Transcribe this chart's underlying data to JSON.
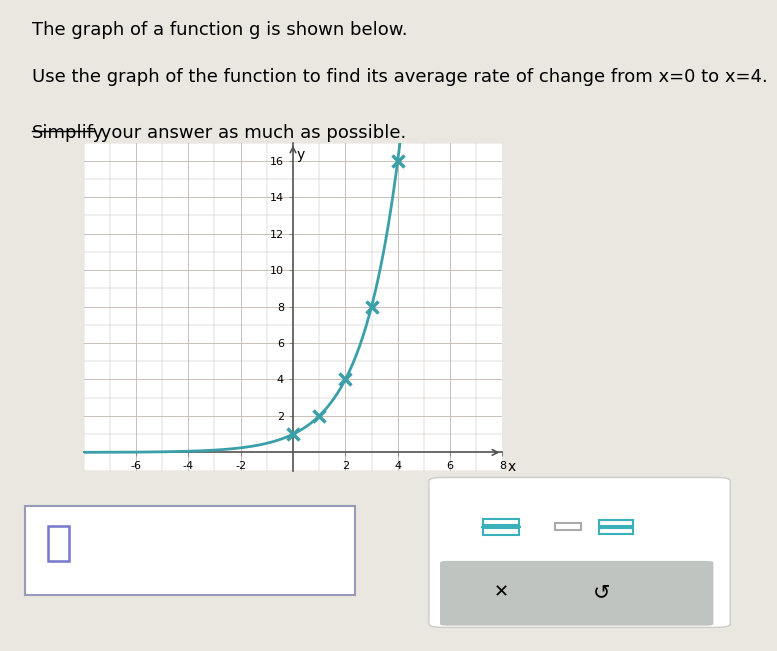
{
  "title_line1": "The graph of a function g is shown below.",
  "title_line2": "Use the graph of the function to find its average rate of change from x=0 to x=4.",
  "title_line3_part1": "Simplify",
  "title_line3_part2": " your answer as much as possible.",
  "background_color": "#eae6e0",
  "plot_bg_color": "#ffffff",
  "curve_color": "#3a9fa8",
  "marker_color": "#3a9fa8",
  "marked_points": [
    [
      0,
      1
    ],
    [
      1,
      2
    ],
    [
      2,
      4
    ],
    [
      3,
      8
    ],
    [
      4,
      16
    ]
  ],
  "x_min": -8,
  "x_max": 8,
  "y_min": -1,
  "y_max": 17,
  "x_ticks": [
    -6,
    -4,
    -2,
    2,
    4,
    6,
    8
  ],
  "y_ticks": [
    2,
    4,
    6,
    8,
    10,
    12,
    14,
    16
  ],
  "grid_color": "#c8c0b8",
  "answer_box_color": "#ffffff",
  "answer_box_border": "#9999bb",
  "fraction_box_color": "#3ab0ba",
  "button_bg": "#c0c4c0"
}
